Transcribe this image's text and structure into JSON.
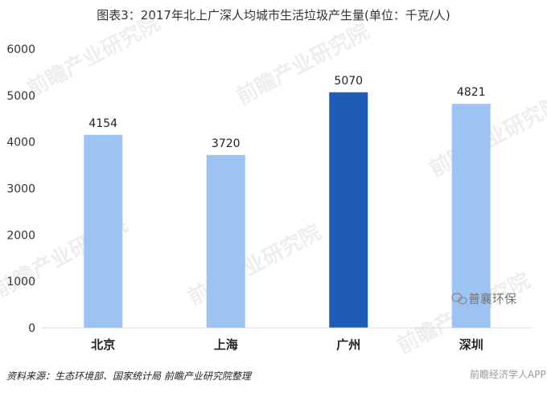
{
  "chart_data": {
    "type": "bar",
    "title": "图表3：2017年北上广深人均城市生活垃圾产生量(单位：千克/人)",
    "categories": [
      "北京",
      "上海",
      "广州",
      "深圳"
    ],
    "values": [
      4154,
      3720,
      5070,
      4821
    ],
    "ylim": [
      0,
      6000
    ],
    "yticks": [
      0,
      1000,
      2000,
      3000,
      4000,
      5000,
      6000
    ],
    "grid": false,
    "legend": "none",
    "colors": {
      "default": "#9dc3f2",
      "highlight": "#1f5cb8",
      "highlight_index": 2
    }
  },
  "source_note": "资料来源：生态环境部、国家统计局 前瞻产业研究院整理",
  "watermark": {
    "logo_text": "前瞻产业研究院",
    "wechat": "普襄环保",
    "app": "前瞻经济学人APP"
  },
  "icons": [
    "wechat-icon"
  ]
}
